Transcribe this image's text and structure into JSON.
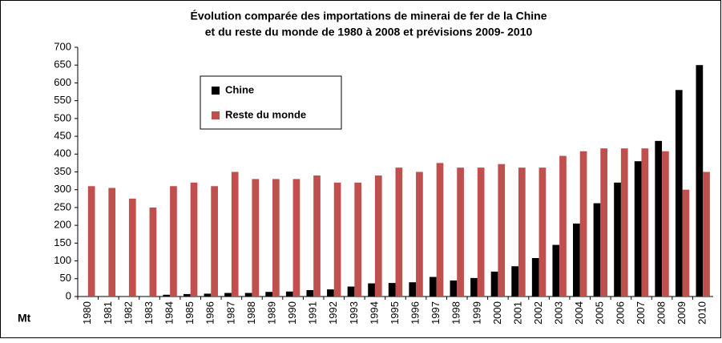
{
  "chart_data": {
    "type": "bar",
    "title": [
      "Évolution comparée des importations de minerai de fer de la Chine",
      "et du reste du monde de 1980 à 2008 et prévisions 2009- 2010"
    ],
    "y_label": "Mt",
    "categories": [
      "1980",
      "1981",
      "1982",
      "1983",
      "1984",
      "1985",
      "1986",
      "1987",
      "1988",
      "1989",
      "1990",
      "1991",
      "1992",
      "1993",
      "1994",
      "1995",
      "1996",
      "1997",
      "1998",
      "1999",
      "2000",
      "2001",
      "2002",
      "2003",
      "2004",
      "2005",
      "2006",
      "2007",
      "2008",
      "2009",
      "2010"
    ],
    "series": [
      {
        "name": "Chine",
        "color": "#000000",
        "values": [
          0,
          0,
          0,
          0,
          5,
          7,
          8,
          10,
          10,
          13,
          14,
          18,
          20,
          28,
          37,
          38,
          40,
          55,
          45,
          52,
          70,
          85,
          108,
          145,
          205,
          262,
          320,
          380,
          437,
          580,
          650
        ]
      },
      {
        "name": "Reste du monde",
        "color": "#c0504d",
        "values": [
          310,
          305,
          275,
          250,
          310,
          320,
          310,
          350,
          330,
          330,
          330,
          340,
          320,
          320,
          340,
          362,
          350,
          375,
          362,
          362,
          372,
          362,
          362,
          395,
          408,
          416,
          416,
          416,
          408,
          300,
          350
        ]
      }
    ],
    "ylim": [
      0,
      700
    ],
    "yticks": [
      0,
      50,
      100,
      150,
      200,
      250,
      300,
      350,
      400,
      450,
      500,
      550,
      600,
      650,
      700
    ],
    "grid": false,
    "legend": "upper-left"
  }
}
